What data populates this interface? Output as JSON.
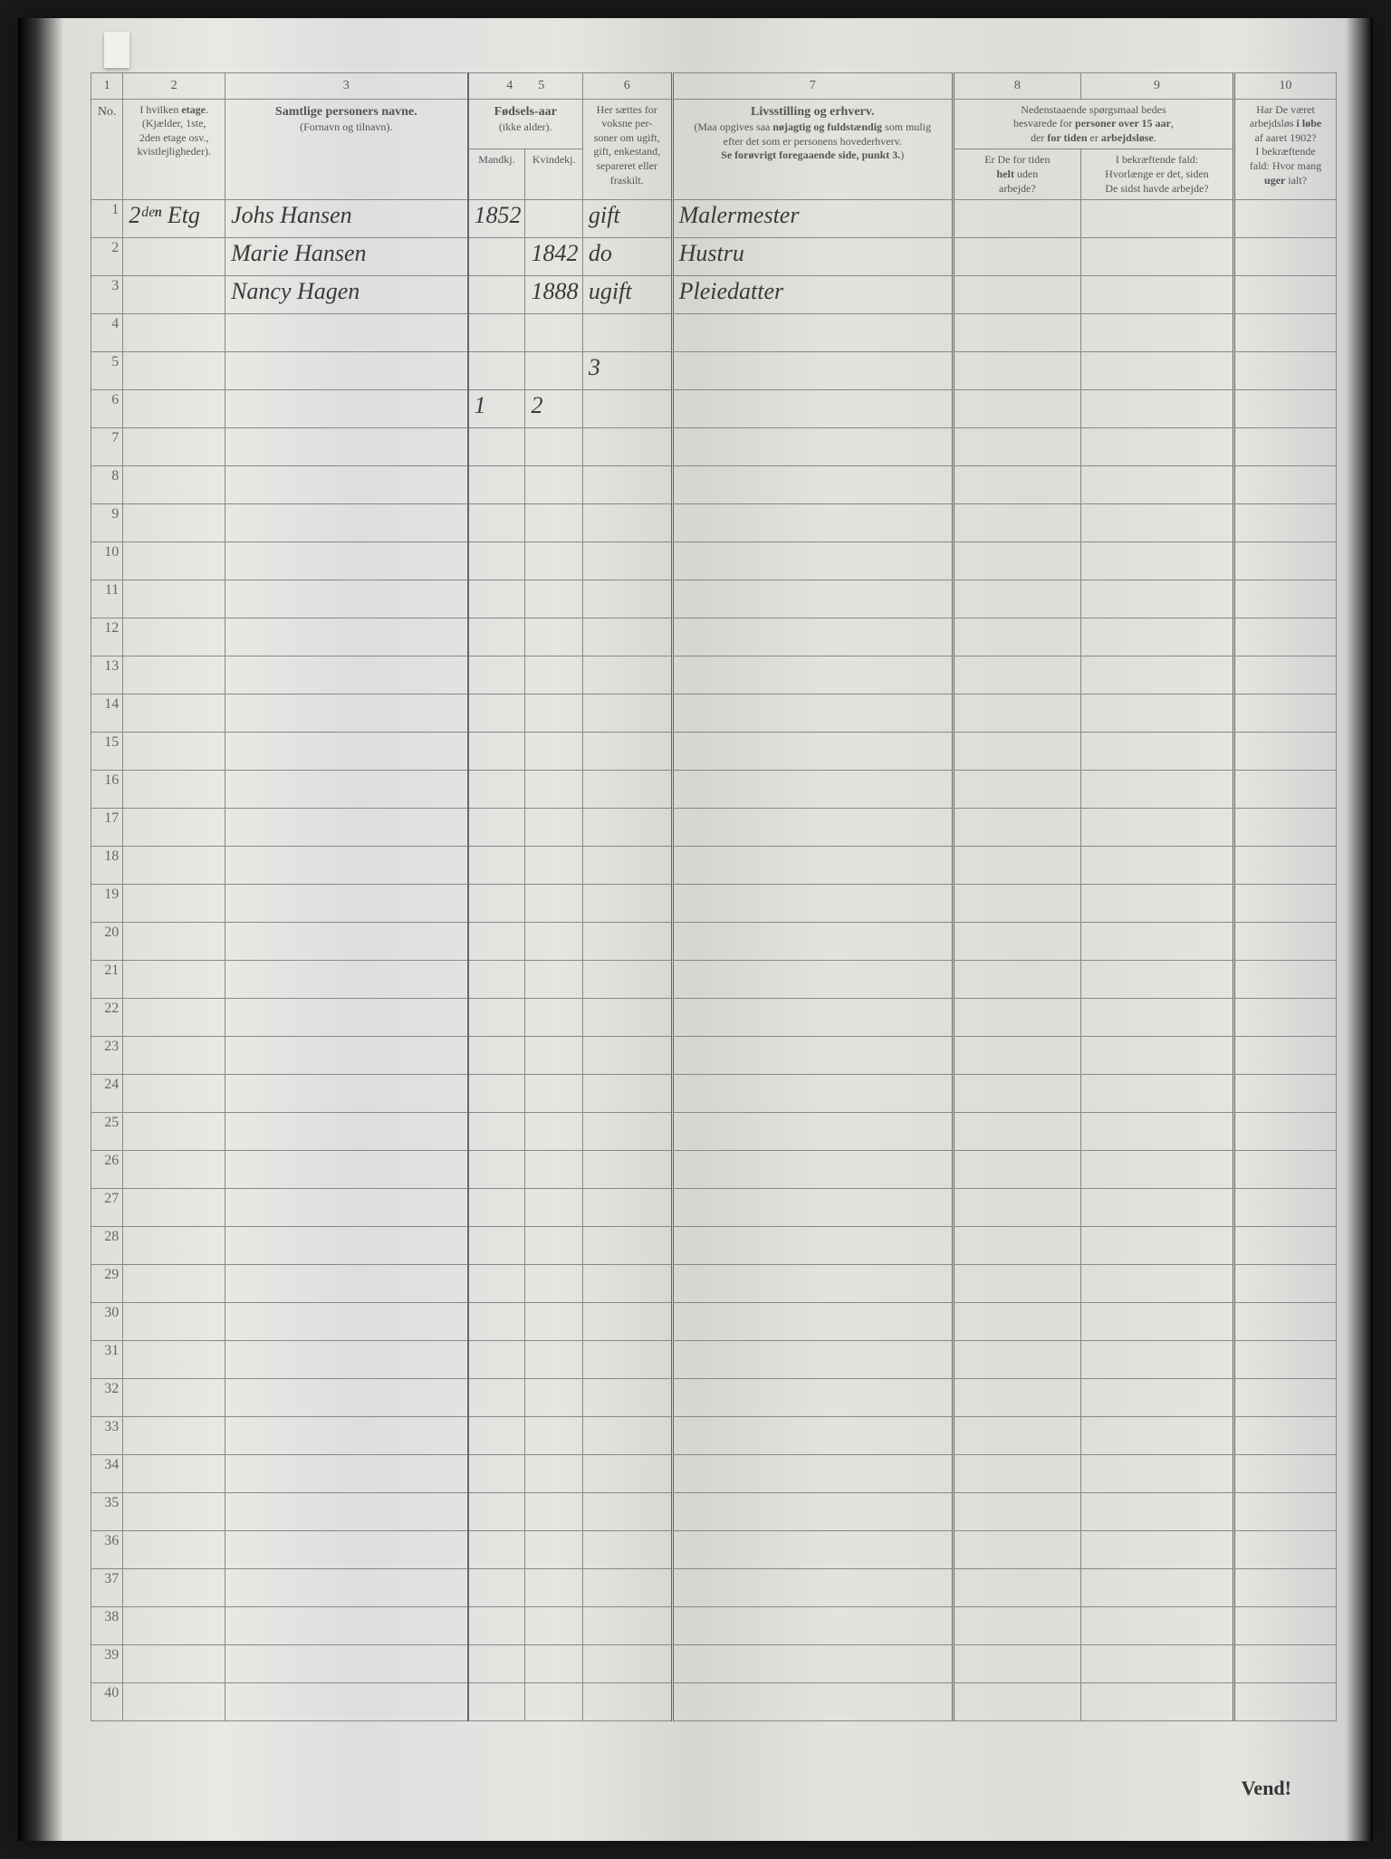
{
  "colnums": [
    "1",
    "2",
    "3",
    "4",
    "5",
    "6",
    "7",
    "8",
    "9",
    "10"
  ],
  "headers": {
    "no": "No.",
    "etage": {
      "line1": "I hvilken <b>etage</b>.",
      "line2": "(Kjælder, 1ste,",
      "line3": "2den etage osv.,",
      "line4": "kvistlejligheder)."
    },
    "navn": {
      "main": "<b>Samtlige personers navne.</b>",
      "sub": "(Fornavn og tilnavn)."
    },
    "fodsel": {
      "main": "<b>Fødsels-aar</b>",
      "sub": "(ikke alder).",
      "m": "Mandkj.",
      "k": "Kvindekj."
    },
    "gift": {
      "l1": "Her sættes for",
      "l2": "voksne per-",
      "l3": "soner om ugift,",
      "l4": "gift, enkestand,",
      "l5": "separeret eller",
      "l6": "fraskilt."
    },
    "erhverv": {
      "main": "<b>Livsstilling og erhverv.</b>",
      "l1": "(Maa opgives saa <b>nøjagtig og fuldstændig</b> som mulig",
      "l2": "efter det som er personens hovederhverv.",
      "l3": "<b>Se forøvrigt foregaaende side, punkt 3.</b>)"
    },
    "col89top": {
      "l1": "Nedenstaaende spørgsmaal bedes",
      "l2": "besvarede for <b>personer over 15 aar</b>,",
      "l3": "der <b>for tiden</b> er <b>arbejdsløse</b>."
    },
    "col8": {
      "l1": "Er De for tiden",
      "l2": "<b>helt</b> uden",
      "l3": "arbejde?"
    },
    "col9": {
      "l1": "I bekræftende fald:",
      "l2": "Hvorlænge er det, siden",
      "l3": "De sidst havde arbejde?"
    },
    "col10": {
      "l1": "Har De været",
      "l2": "arbejdsløs <b>i løbe</b>",
      "l3": "af aaret 1902?",
      "l4": "I bekræftende",
      "l5": "fald: Hvor mang",
      "l6": "<b>uger</b> ialt?"
    }
  },
  "rows": [
    {
      "n": "1",
      "etage": "2ᵈᵉⁿ Etg",
      "navn": "Johs Hansen",
      "m": "1852",
      "k": "",
      "gift": "gift",
      "erhverv": "Malermester",
      "c8": "",
      "c9": "",
      "c10": ""
    },
    {
      "n": "2",
      "etage": "",
      "navn": "Marie Hansen",
      "m": "",
      "k": "1842",
      "gift": "do",
      "erhverv": "Hustru",
      "c8": "",
      "c9": "",
      "c10": ""
    },
    {
      "n": "3",
      "etage": "",
      "navn": "Nancy Hagen",
      "m": "",
      "k": "1888",
      "gift": "ugift",
      "erhverv": "Pleiedatter",
      "c8": "",
      "c9": "",
      "c10": ""
    },
    {
      "n": "4",
      "etage": "",
      "navn": "",
      "m": "",
      "k": "",
      "gift": "",
      "erhverv": "",
      "c8": "",
      "c9": "",
      "c10": ""
    },
    {
      "n": "5",
      "etage": "",
      "navn": "",
      "m": "",
      "k": "",
      "gift": "3",
      "erhverv": "",
      "c8": "",
      "c9": "",
      "c10": ""
    },
    {
      "n": "6",
      "etage": "",
      "navn": "",
      "m": "1",
      "k": "2",
      "gift": "",
      "erhverv": "",
      "c8": "",
      "c9": "",
      "c10": ""
    },
    {
      "n": "7"
    },
    {
      "n": "8"
    },
    {
      "n": "9"
    },
    {
      "n": "10"
    },
    {
      "n": "11"
    },
    {
      "n": "12"
    },
    {
      "n": "13"
    },
    {
      "n": "14"
    },
    {
      "n": "15"
    },
    {
      "n": "16"
    },
    {
      "n": "17"
    },
    {
      "n": "18"
    },
    {
      "n": "19"
    },
    {
      "n": "20"
    },
    {
      "n": "21"
    },
    {
      "n": "22"
    },
    {
      "n": "23"
    },
    {
      "n": "24"
    },
    {
      "n": "25"
    },
    {
      "n": "26"
    },
    {
      "n": "27"
    },
    {
      "n": "28"
    },
    {
      "n": "29"
    },
    {
      "n": "30"
    },
    {
      "n": "31"
    },
    {
      "n": "32"
    },
    {
      "n": "33"
    },
    {
      "n": "34"
    },
    {
      "n": "35"
    },
    {
      "n": "36"
    },
    {
      "n": "37"
    },
    {
      "n": "38"
    },
    {
      "n": "39"
    },
    {
      "n": "40"
    }
  ],
  "footer": "Vend!"
}
